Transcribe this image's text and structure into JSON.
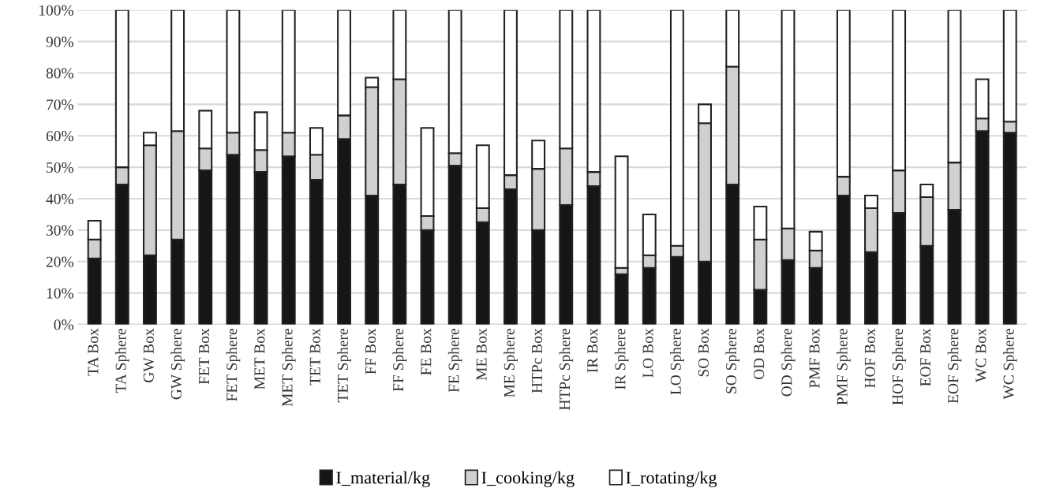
{
  "chart_data": {
    "type": "bar",
    "stacked": true,
    "categories": [
      "TA Box",
      "TA Sphere",
      "GW Box",
      "GW Sphere",
      "FET Box",
      "FET Sphere",
      "MET Box",
      "MET Sphere",
      "TET Box",
      "TET Sphere",
      "FF Box",
      "FF Sphere",
      "FE Box",
      "FE Sphere",
      "ME Box",
      "ME Sphere",
      "HTPc Box",
      "HTPc Sphere",
      "IR Box",
      "IR Sphere",
      "LO Box",
      "LO Sphere",
      "SO Box",
      "SO Sphere",
      "OD Box",
      "OD Sphere",
      "PMF Box",
      "PMF Sphere",
      "HOF Box",
      "HOF Sphere",
      "EOF Box",
      "EOF Sphere",
      "WC Box",
      "WC Sphere"
    ],
    "series": [
      {
        "name": "I_material/kg",
        "color": "#161616",
        "values": [
          21,
          44.5,
          22,
          27,
          49,
          54,
          48.5,
          53.5,
          46,
          59,
          41,
          44.5,
          30,
          50.5,
          32.5,
          43,
          30,
          38,
          44,
          16,
          18,
          21.5,
          20,
          44.5,
          11,
          20.5,
          18,
          41,
          23,
          35.5,
          25,
          36.5,
          61.5,
          61
        ]
      },
      {
        "name": "I_cooking/kg",
        "color": "#d0d0d0",
        "values": [
          6,
          5.5,
          35,
          34.5,
          7,
          7,
          7,
          7.5,
          8,
          7.5,
          34.5,
          33.5,
          4.5,
          4,
          4.5,
          4.5,
          19.5,
          18,
          4.5,
          2,
          4,
          3.5,
          44,
          37.5,
          16,
          10,
          5.5,
          6,
          14,
          13.5,
          15.5,
          15,
          4,
          3.5
        ]
      },
      {
        "name": "I_rotating/kg",
        "color": "#ffffff",
        "values": [
          6,
          50,
          4,
          38.5,
          12,
          39,
          12,
          39,
          8.5,
          33.5,
          3,
          22,
          28,
          45.5,
          20,
          52.5,
          9,
          44,
          51.5,
          35.5,
          13,
          75,
          6,
          18,
          10.5,
          69.5,
          6,
          53,
          4,
          51,
          4,
          48.5,
          12.5,
          35.5
        ]
      }
    ],
    "ylim": [
      0,
      100
    ],
    "yticks": [
      {
        "value": 0,
        "label": "0%"
      },
      {
        "value": 10,
        "label": "10%"
      },
      {
        "value": 20,
        "label": "20%"
      },
      {
        "value": 30,
        "label": "30%"
      },
      {
        "value": 40,
        "label": "40%"
      },
      {
        "value": 50,
        "label": "50%"
      },
      {
        "value": 60,
        "label": "60%"
      },
      {
        "value": 70,
        "label": "70%"
      },
      {
        "value": 80,
        "label": "80%"
      },
      {
        "value": 90,
        "label": "90%"
      },
      {
        "value": 100,
        "label": "100%"
      }
    ],
    "grid": "y",
    "legend": "bottom"
  }
}
